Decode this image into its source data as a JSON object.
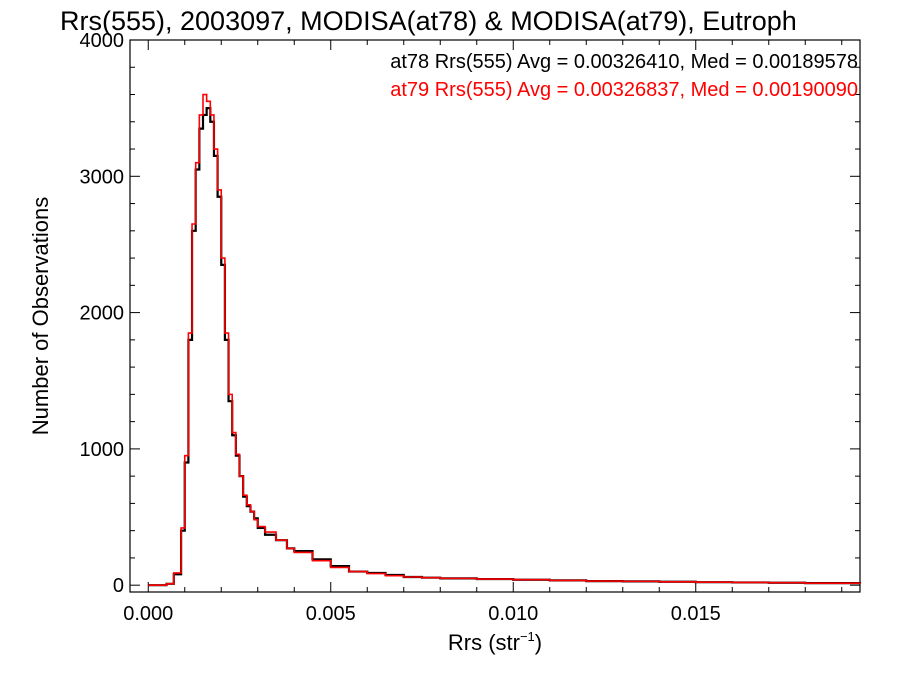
{
  "chart_data": {
    "type": "line",
    "title": "Rrs(555), 2003097, MODISA(at78) & MODISA(at79), Eutroph",
    "xlabel": "Rrs (str",
    "xlabel_exp": "−1",
    "xlabel_close": ")",
    "ylabel": "Number of Observations",
    "xlim": [
      -0.0005,
      0.0195
    ],
    "ylim": [
      -50,
      4000
    ],
    "x_ticks": [
      0.0,
      0.005,
      0.01,
      0.015
    ],
    "x_tick_labels": [
      "0.000",
      "0.005",
      "0.010",
      "0.015"
    ],
    "y_ticks": [
      0,
      1000,
      2000,
      3000,
      4000
    ],
    "y_tick_labels": [
      "0",
      "1000",
      "2000",
      "3000",
      "4000"
    ],
    "grid": false,
    "series": [
      {
        "name": "at78",
        "color": "#000000",
        "stats_text": "at78 Rrs(555) Avg = 0.00326410, Med = 0.00189578",
        "x": [
          0.0,
          0.0005,
          0.0007,
          0.0009,
          0.001,
          0.0011,
          0.0012,
          0.0013,
          0.0014,
          0.0015,
          0.0016,
          0.0017,
          0.0018,
          0.0019,
          0.002,
          0.0021,
          0.0022,
          0.0023,
          0.0024,
          0.0025,
          0.0026,
          0.0027,
          0.0028,
          0.0029,
          0.003,
          0.0032,
          0.0035,
          0.0038,
          0.004,
          0.0045,
          0.005,
          0.0055,
          0.006,
          0.0065,
          0.007,
          0.0075,
          0.008,
          0.009,
          0.01,
          0.011,
          0.012,
          0.013,
          0.014,
          0.015,
          0.016,
          0.017,
          0.018,
          0.0195
        ],
        "y": [
          0,
          10,
          80,
          400,
          900,
          1800,
          2600,
          3050,
          3350,
          3450,
          3500,
          3400,
          3150,
          2850,
          2350,
          1800,
          1350,
          1100,
          950,
          800,
          650,
          580,
          540,
          490,
          420,
          370,
          330,
          270,
          250,
          190,
          140,
          100,
          90,
          75,
          60,
          55,
          50,
          45,
          40,
          35,
          30,
          28,
          25,
          22,
          20,
          18,
          15,
          12
        ]
      },
      {
        "name": "at79",
        "color": "#ff0000",
        "stats_text": "at79 Rrs(555) Avg = 0.00326837, Med = 0.00190090",
        "x": [
          0.0,
          0.0005,
          0.0007,
          0.0009,
          0.001,
          0.0011,
          0.0012,
          0.0013,
          0.0014,
          0.0015,
          0.0016,
          0.0017,
          0.0018,
          0.0019,
          0.002,
          0.0021,
          0.0022,
          0.0023,
          0.0024,
          0.0025,
          0.0026,
          0.0027,
          0.0028,
          0.0029,
          0.003,
          0.0032,
          0.0035,
          0.0038,
          0.004,
          0.0045,
          0.005,
          0.0055,
          0.006,
          0.0065,
          0.007,
          0.0075,
          0.008,
          0.009,
          0.01,
          0.011,
          0.012,
          0.013,
          0.014,
          0.015,
          0.016,
          0.017,
          0.018,
          0.0195
        ],
        "y": [
          0,
          10,
          90,
          420,
          950,
          1850,
          2650,
          3100,
          3450,
          3600,
          3550,
          3450,
          3200,
          2900,
          2400,
          1850,
          1400,
          1120,
          960,
          800,
          660,
          590,
          540,
          480,
          430,
          390,
          330,
          270,
          240,
          180,
          130,
          100,
          85,
          70,
          60,
          55,
          50,
          45,
          40,
          35,
          30,
          28,
          25,
          22,
          20,
          18,
          15,
          12
        ]
      }
    ]
  }
}
